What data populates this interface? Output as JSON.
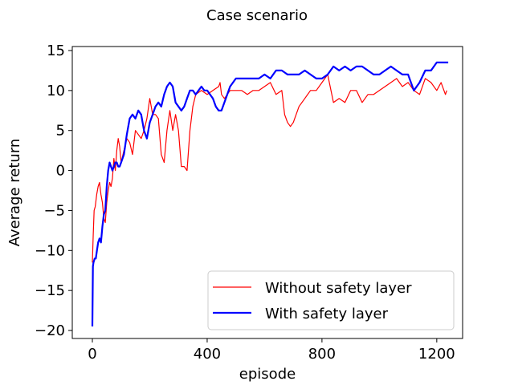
{
  "chart_data": {
    "type": "line",
    "title": "Case scenario",
    "xlabel": "episode",
    "ylabel": "Average return",
    "xlim": [
      -70,
      1290
    ],
    "ylim": [
      -21,
      15.5
    ],
    "xticks": [
      0,
      400,
      800,
      1200
    ],
    "xtick_labels": [
      "0",
      "400",
      "800",
      "1200"
    ],
    "yticks": [
      -20,
      -15,
      -10,
      -5,
      0,
      5,
      10,
      15
    ],
    "ytick_labels": [
      "−20",
      "−15",
      "−10",
      "−5",
      "0",
      "5",
      "10",
      "15"
    ],
    "grid": false,
    "legend_position": "lower-right",
    "series": [
      {
        "name": "Without safety layer",
        "color": "#ff0000",
        "line_width": 1.2,
        "x": [
          0,
          3,
          6,
          10,
          15,
          20,
          25,
          30,
          35,
          40,
          45,
          50,
          55,
          60,
          65,
          70,
          75,
          80,
          85,
          90,
          95,
          100,
          110,
          120,
          130,
          140,
          150,
          160,
          170,
          180,
          190,
          200,
          210,
          220,
          230,
          240,
          250,
          260,
          270,
          280,
          290,
          300,
          310,
          320,
          330,
          340,
          350,
          360,
          380,
          400,
          420,
          440,
          445,
          450,
          460,
          470,
          480,
          500,
          520,
          540,
          560,
          580,
          600,
          620,
          640,
          660,
          670,
          680,
          690,
          700,
          720,
          740,
          760,
          780,
          800,
          820,
          840,
          860,
          880,
          900,
          920,
          940,
          960,
          980,
          1000,
          1020,
          1040,
          1060,
          1080,
          1100,
          1120,
          1140,
          1160,
          1180,
          1200,
          1215,
          1225,
          1230,
          1235
        ],
        "y": [
          -11.5,
          -8,
          -5,
          -4.5,
          -3,
          -2,
          -1.5,
          -3,
          -4,
          -6,
          -6.5,
          -4,
          -2.5,
          -1.5,
          -2,
          -1,
          1.5,
          0,
          2.5,
          4,
          3,
          1,
          2.5,
          4,
          3.5,
          2,
          5,
          4.5,
          4,
          5,
          6.5,
          9,
          7,
          7,
          6.5,
          2,
          1,
          5,
          7.5,
          5,
          7,
          5,
          0.5,
          0.5,
          0,
          5,
          8,
          9.5,
          10,
          9.5,
          10,
          10.5,
          11,
          9.5,
          9,
          9.5,
          10,
          10,
          10,
          9.5,
          10,
          10,
          10.5,
          11,
          9.5,
          10,
          7,
          6,
          5.5,
          6,
          8,
          9,
          10,
          10,
          11,
          12,
          8.5,
          9,
          8.5,
          10,
          10,
          8.5,
          9.5,
          9.5,
          10,
          10.5,
          11,
          11.5,
          10.5,
          11,
          10,
          9.5,
          11.5,
          11,
          10,
          11,
          10,
          9.5,
          10
        ]
      },
      {
        "name": "With safety layer",
        "color": "#0000ff",
        "line_width": 2.2,
        "x": [
          0,
          2,
          4,
          8,
          12,
          16,
          20,
          25,
          30,
          35,
          40,
          45,
          50,
          55,
          60,
          65,
          70,
          75,
          80,
          85,
          90,
          95,
          100,
          110,
          120,
          130,
          140,
          150,
          160,
          170,
          180,
          190,
          200,
          210,
          220,
          230,
          240,
          250,
          260,
          270,
          280,
          290,
          300,
          310,
          320,
          330,
          340,
          350,
          360,
          370,
          380,
          390,
          400,
          410,
          420,
          430,
          440,
          450,
          460,
          480,
          500,
          520,
          540,
          560,
          580,
          600,
          620,
          640,
          660,
          680,
          700,
          720,
          740,
          760,
          780,
          800,
          820,
          840,
          860,
          880,
          900,
          920,
          940,
          960,
          980,
          1000,
          1020,
          1040,
          1060,
          1080,
          1100,
          1110,
          1120,
          1140,
          1160,
          1180,
          1200,
          1220,
          1240
        ],
        "y": [
          -19.5,
          -12,
          -11.5,
          -11,
          -11,
          -10,
          -9,
          -8.5,
          -9,
          -7,
          -5.5,
          -5,
          -2,
          0,
          1,
          0.5,
          0,
          0.5,
          1,
          1,
          0.5,
          0.5,
          1,
          2,
          4.5,
          6.5,
          7,
          6.5,
          7.5,
          7,
          5,
          4,
          6,
          7,
          8,
          8.5,
          8,
          9.5,
          10.5,
          11,
          10.5,
          8.5,
          8,
          7.5,
          8,
          9,
          10,
          10,
          9.5,
          10,
          10.5,
          10,
          10,
          9.5,
          9,
          8,
          7.5,
          7.5,
          8.5,
          10.5,
          11.5,
          11.5,
          11.5,
          11.5,
          11.5,
          12,
          11.5,
          12.5,
          12.5,
          12,
          12,
          12,
          12.5,
          12,
          11.5,
          11.5,
          12,
          13,
          12.5,
          13,
          12.5,
          13,
          13,
          12.5,
          12,
          12,
          12.5,
          13,
          12.5,
          12,
          12,
          11,
          10,
          11,
          12.5,
          12.5,
          13.5,
          13.5,
          13.5
        ]
      }
    ]
  }
}
